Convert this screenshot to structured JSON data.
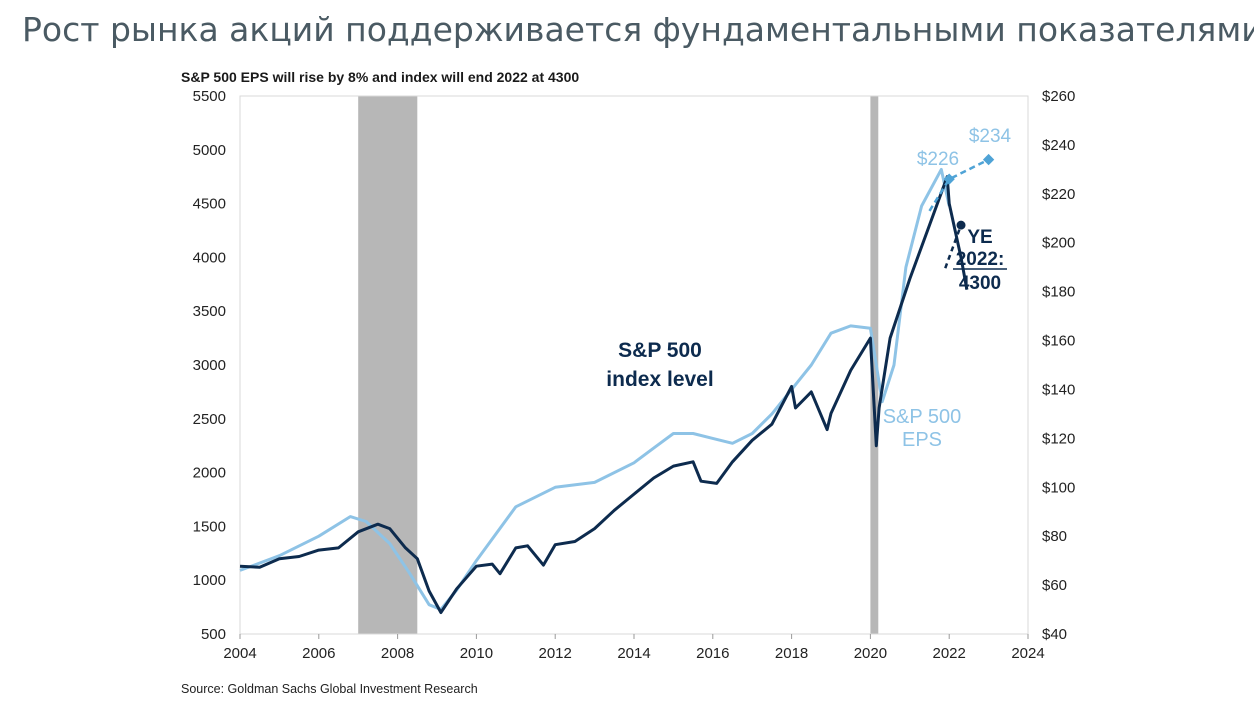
{
  "page": {
    "title": "Рост рынка акций поддерживается фундаментальными показателями"
  },
  "chart_data": {
    "type": "line",
    "title": "S&P 500 EPS will rise by 8% and index will end 2022 at 4300",
    "source": "Source: Goldman Sachs Global Investment Research",
    "xlim": [
      2004,
      2024
    ],
    "x_ticks": [
      "2004",
      "2006",
      "2008",
      "2010",
      "2012",
      "2014",
      "2016",
      "2018",
      "2020",
      "2022",
      "2024"
    ],
    "y_left": {
      "lim": [
        500,
        5500
      ],
      "ticks": [
        "500",
        "1000",
        "1500",
        "2000",
        "2500",
        "3000",
        "3500",
        "4000",
        "4500",
        "5000",
        "5500"
      ]
    },
    "y_right": {
      "lim": [
        40,
        260
      ],
      "ticks": [
        "$40",
        "$60",
        "$80",
        "$100",
        "$120",
        "$140",
        "$160",
        "$180",
        "$200",
        "$220",
        "$240",
        "$260"
      ]
    },
    "recessions": [
      [
        2007.0,
        2008.5
      ],
      [
        2020.0,
        2020.2
      ]
    ],
    "colors": {
      "index": "#0d2b4e",
      "eps": "#8ec3e6",
      "eps_forecast": "#4fa3d6",
      "recession": "#b7b7b7",
      "axis": "#d9d9d9"
    },
    "series": [
      {
        "name": "S&P 500 index level",
        "axis": "left",
        "x": [
          2004.0,
          2004.5,
          2005.0,
          2005.5,
          2006.0,
          2006.5,
          2007.0,
          2007.5,
          2007.8,
          2008.2,
          2008.5,
          2008.8,
          2009.1,
          2009.5,
          2010.0,
          2010.4,
          2010.6,
          2011.0,
          2011.3,
          2011.7,
          2012.0,
          2012.5,
          2013.0,
          2013.5,
          2014.0,
          2014.5,
          2015.0,
          2015.5,
          2015.7,
          2016.1,
          2016.5,
          2017.0,
          2017.5,
          2018.0,
          2018.1,
          2018.5,
          2018.9,
          2019.0,
          2019.5,
          2020.0,
          2020.15,
          2020.22,
          2020.5,
          2021.0,
          2021.5,
          2021.95,
          2022.0,
          2022.3,
          2022.45
        ],
        "values": [
          1130,
          1120,
          1200,
          1220,
          1280,
          1300,
          1450,
          1520,
          1480,
          1300,
          1200,
          900,
          700,
          920,
          1130,
          1150,
          1060,
          1300,
          1320,
          1140,
          1330,
          1360,
          1480,
          1650,
          1800,
          1950,
          2060,
          2100,
          1920,
          1900,
          2100,
          2300,
          2450,
          2800,
          2600,
          2750,
          2400,
          2550,
          2950,
          3250,
          2250,
          2600,
          3250,
          3800,
          4300,
          4750,
          4500,
          4000,
          3700
        ]
      },
      {
        "name": "S&P 500 EPS",
        "axis": "right",
        "x": [
          2004.0,
          2005.0,
          2006.0,
          2006.8,
          2007.2,
          2007.8,
          2008.3,
          2008.8,
          2009.1,
          2009.5,
          2010.0,
          2011.0,
          2012.0,
          2013.0,
          2014.0,
          2014.5,
          2015.0,
          2015.5,
          2016.0,
          2016.5,
          2017.0,
          2017.5,
          2018.0,
          2018.5,
          2019.0,
          2019.5,
          2020.0,
          2020.3,
          2020.6,
          2020.9,
          2021.3,
          2021.8,
          2022.0
        ],
        "values": [
          66,
          72,
          80,
          88,
          86,
          77,
          65,
          52,
          50,
          58,
          70,
          92,
          100,
          102,
          110,
          116,
          122,
          122,
          120,
          118,
          122,
          130,
          140,
          150,
          163,
          166,
          165,
          135,
          150,
          190,
          215,
          230,
          215
        ]
      }
    ],
    "eps_forecast": {
      "points": [
        [
          2021.5,
          213
        ],
        [
          2022.0,
          226
        ],
        [
          2023.0,
          234
        ]
      ],
      "labels": [
        "$226",
        "$234"
      ]
    },
    "index_forecast": {
      "points": [
        [
          2021.9,
          3900
        ],
        [
          2022.3,
          4300
        ]
      ]
    },
    "annotations": {
      "index_line1": "S&P 500",
      "index_line2": "index level",
      "eps_line1": "S&P 500",
      "eps_line2": "EPS",
      "ye_line1": "YE",
      "ye_line2": "2022:",
      "ye_line3": "4300"
    }
  }
}
